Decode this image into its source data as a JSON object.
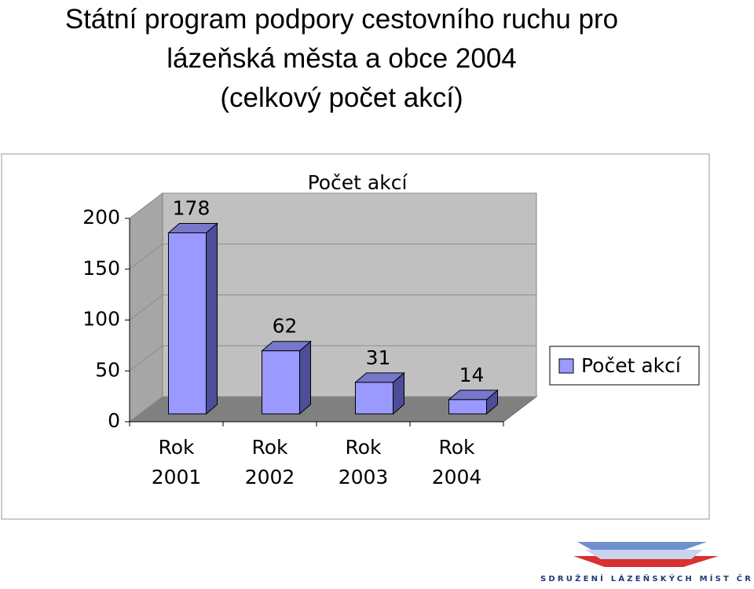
{
  "slide_title": [
    "Státní program podpory cestovního ruchu pro",
    "lázeňská města a obce 2004",
    "(celkový počet akcí)"
  ],
  "logo_text": "SDRUŽENÍ LÁZEŇSKÝCH MÍST ČR",
  "chart_data": {
    "type": "bar3d",
    "title": "Počet akcí",
    "categories": [
      "Rok 2001",
      "Rok 2002",
      "Rok 2003",
      "Rok 2004"
    ],
    "series": [
      {
        "name": "Počet akcí",
        "color": "#9999ff",
        "values": [
          178,
          62,
          31,
          14
        ]
      }
    ],
    "ylim": [
      0,
      200
    ],
    "yticks": [
      0,
      50,
      100,
      150,
      200
    ],
    "grid": true,
    "legend": "right"
  }
}
